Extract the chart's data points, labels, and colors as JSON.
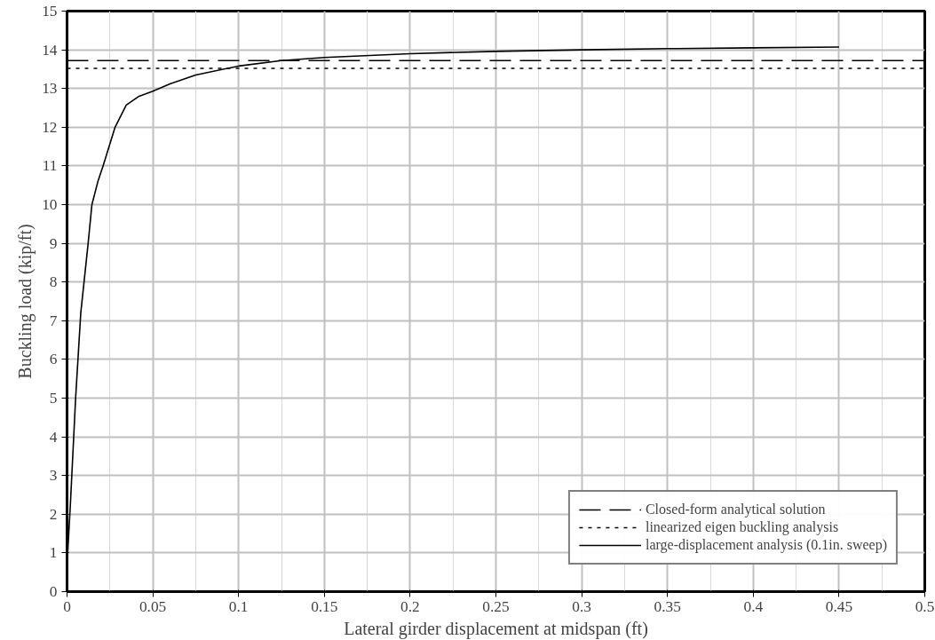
{
  "chart_data": {
    "type": "line",
    "xlabel": "Lateral girder displacement at midspan (ft)",
    "ylabel": "Buckling load (kip/ft)",
    "xlim": [
      0,
      0.5
    ],
    "ylim": [
      0,
      15
    ],
    "xticks": [
      0,
      0.05,
      0.1,
      0.15,
      0.2,
      0.25,
      0.3,
      0.35,
      0.4,
      0.45,
      0.5
    ],
    "yticks": [
      0,
      1,
      2,
      3,
      4,
      5,
      6,
      7,
      8,
      9,
      10,
      11,
      12,
      13,
      14,
      15
    ],
    "grid": true,
    "legend": "bottom right",
    "series": [
      {
        "name": "Closed-form analytical solution",
        "color": "#000000",
        "line_style": "dashed",
        "x": [
          0,
          0.5
        ],
        "values": [
          13.72,
          13.72
        ]
      },
      {
        "name": "linearized eigen buckling analysis",
        "color": "#000000",
        "line_style": "dotted",
        "x": [
          0,
          0.5
        ],
        "values": [
          13.52,
          13.52
        ]
      },
      {
        "name": "large-displacement analysis (0.1in. sweep)",
        "color": "#000000",
        "line_style": "solid",
        "x": [
          0,
          0.002,
          0.005,
          0.008,
          0.0123,
          0.0145,
          0.018,
          0.021,
          0.028,
          0.0345,
          0.042,
          0.05,
          0.06,
          0.075,
          0.1,
          0.125,
          0.15,
          0.2,
          0.25,
          0.3,
          0.35,
          0.4,
          0.45
        ],
        "values": [
          0.69,
          2.3,
          5.0,
          7.2,
          9.0,
          10.0,
          10.6,
          11.0,
          12.0,
          12.57,
          12.8,
          12.93,
          13.12,
          13.35,
          13.58,
          13.72,
          13.8,
          13.9,
          13.96,
          14.0,
          14.03,
          14.05,
          14.07
        ]
      }
    ]
  }
}
